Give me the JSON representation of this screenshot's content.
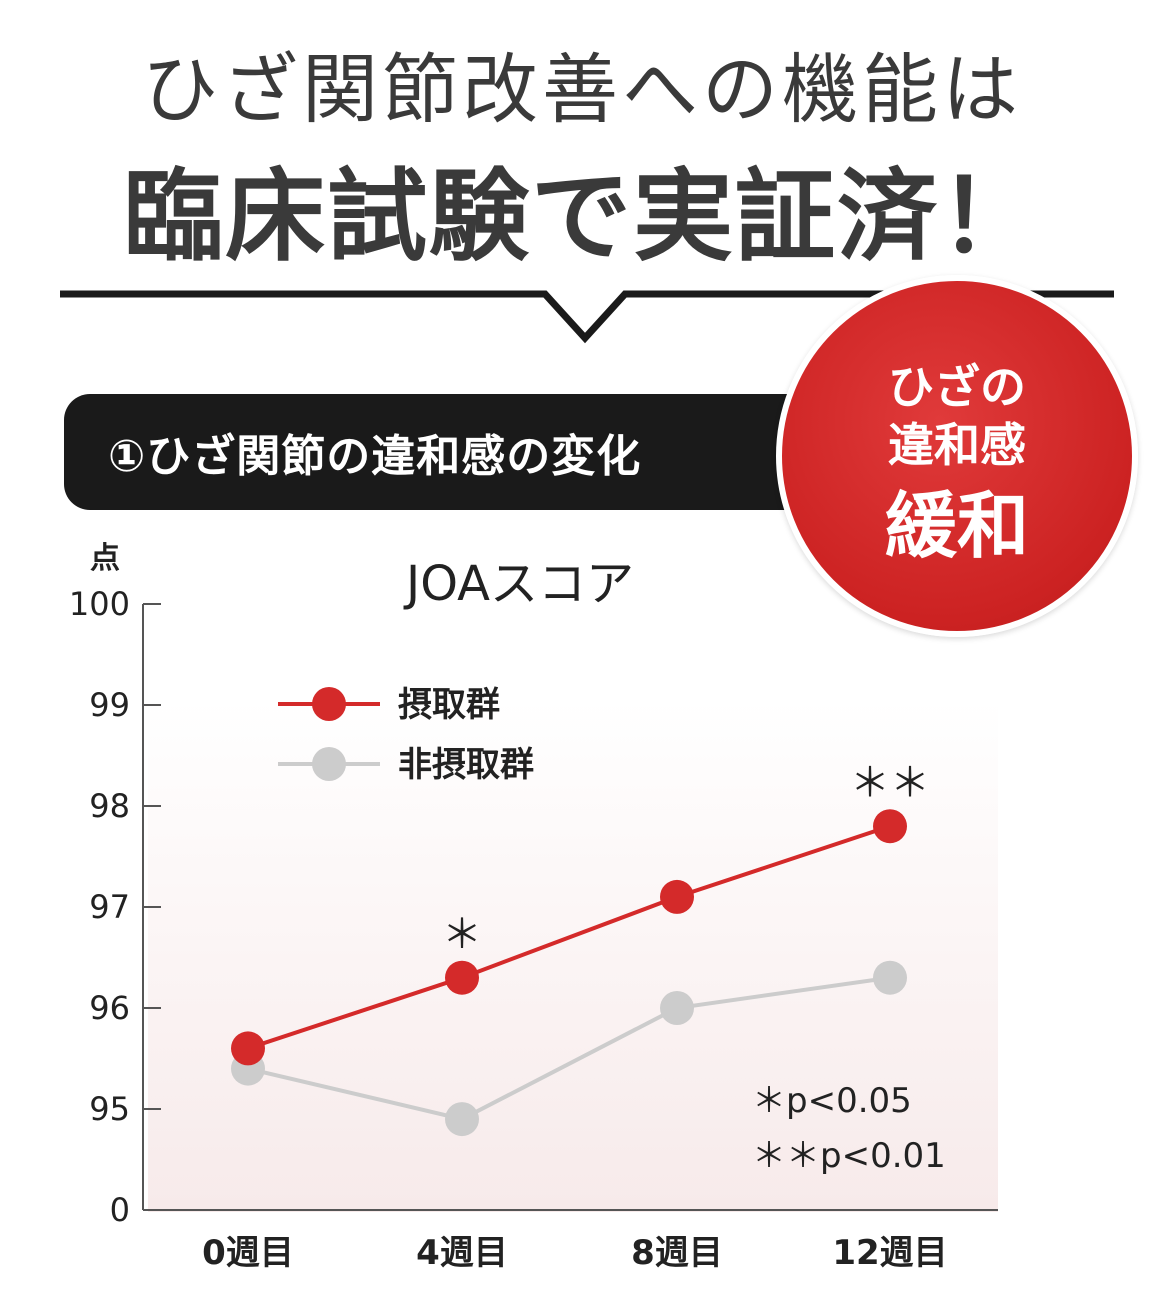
{
  "header": {
    "line1": "ひざ関節改善への機能は",
    "line2": "臨床試験で実証済！"
  },
  "section": {
    "label": "①ひざ関節の違和感の変化"
  },
  "badge": {
    "line1": "ひざの",
    "line2": "違和感",
    "line3": "緩和"
  },
  "chart_data": {
    "type": "line",
    "title": "JOAスコア",
    "ylabel": "点",
    "categories": [
      "0週目",
      "4週目",
      "8週目",
      "12週目"
    ],
    "y_ticks": [
      "100",
      "99",
      "98",
      "97",
      "96",
      "95",
      "0"
    ],
    "axis_break": "the axis jumps from 95 to 0 at the bottom tick",
    "ylim": [
      94,
      100
    ],
    "series": [
      {
        "name": "摂取群",
        "color": "#d42a2a",
        "values": [
          95.6,
          96.3,
          97.1,
          97.8
        ]
      },
      {
        "name": "非摂取群",
        "color": "#cccccc",
        "values": [
          95.4,
          94.9,
          96.0,
          96.3
        ]
      }
    ],
    "significance_marks": [
      {
        "category_index": 1,
        "text": "＊"
      },
      {
        "category_index": 3,
        "text": "＊＊"
      }
    ],
    "notes": [
      "＊p<0.05",
      "＊＊p<0.01"
    ],
    "legend_position": "top-left",
    "grid": false
  }
}
